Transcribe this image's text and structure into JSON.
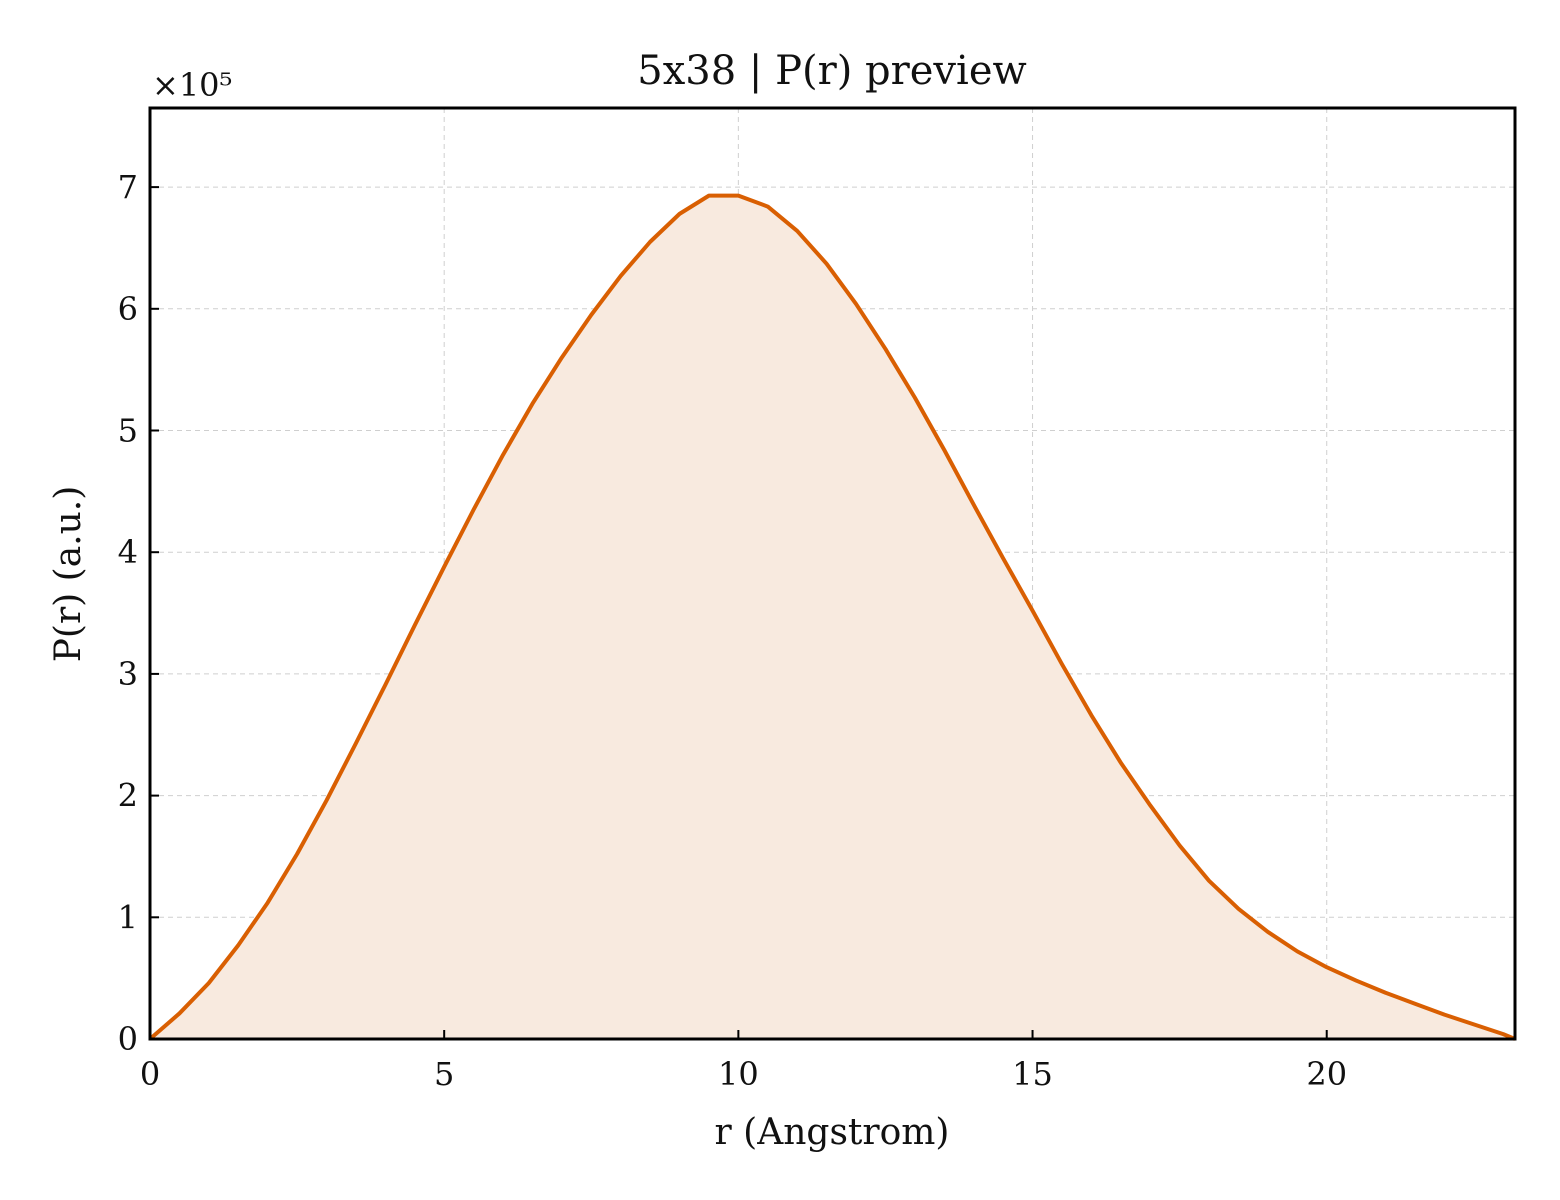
{
  "chart_data": {
    "type": "area",
    "title": "5x38 | P(r) preview",
    "xlabel": "r (Angstrom)",
    "ylabel": "P(r) (a.u.)",
    "y_offset_label": "×10⁵",
    "y_multiplier": 100000,
    "xlim": [
      0,
      23.2
    ],
    "ylim": [
      0,
      7.65
    ],
    "x_ticks": [
      0,
      5,
      10,
      15,
      20
    ],
    "y_ticks": [
      0,
      1,
      2,
      3,
      4,
      5,
      6,
      7
    ],
    "grid": true,
    "colors": {
      "line": "#d95f02",
      "fill": "#f8eadf"
    },
    "series": [
      {
        "x": [
          0,
          0.5,
          1,
          1.5,
          2,
          2.5,
          3,
          3.5,
          4,
          4.5,
          5,
          5.5,
          6,
          6.5,
          7,
          7.5,
          8,
          8.5,
          9,
          9.5,
          10,
          10.5,
          11,
          11.5,
          12,
          12.5,
          13,
          13.5,
          14,
          14.5,
          15,
          15.5,
          16,
          16.5,
          17,
          17.5,
          18,
          18.5,
          19,
          19.5,
          20,
          20.5,
          21,
          21.5,
          22,
          22.5,
          23,
          23.2
        ],
        "y": [
          0,
          0.21,
          0.46,
          0.77,
          1.12,
          1.52,
          1.96,
          2.43,
          2.91,
          3.4,
          3.88,
          4.35,
          4.8,
          5.22,
          5.6,
          5.95,
          6.27,
          6.55,
          6.78,
          6.93,
          6.93,
          6.84,
          6.64,
          6.37,
          6.04,
          5.67,
          5.27,
          4.84,
          4.39,
          3.95,
          3.52,
          3.08,
          2.66,
          2.27,
          1.92,
          1.59,
          1.3,
          1.07,
          0.88,
          0.72,
          0.59,
          0.48,
          0.38,
          0.29,
          0.2,
          0.12,
          0.04,
          0
        ]
      }
    ]
  }
}
